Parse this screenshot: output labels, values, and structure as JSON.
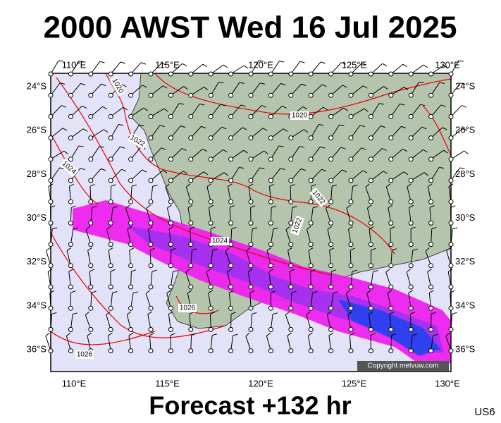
{
  "header": {
    "title": "2000 AWST Wed 16 Jul 2025"
  },
  "map": {
    "lon_labels": [
      "110°E",
      "115°E",
      "120°E",
      "125°E",
      "130°E"
    ],
    "lat_labels": [
      "24°S",
      "26°S",
      "28°S",
      "30°S",
      "32°S",
      "34°S",
      "36°S"
    ],
    "isobar_labels": [
      "1020",
      "1020",
      "1022",
      "1024",
      "1022",
      "1022",
      "1024",
      "1026",
      "1026"
    ],
    "copyright": "Copyright metvuw.com"
  },
  "footer": {
    "forecast": "Forecast +132 hr",
    "code": "US6"
  }
}
